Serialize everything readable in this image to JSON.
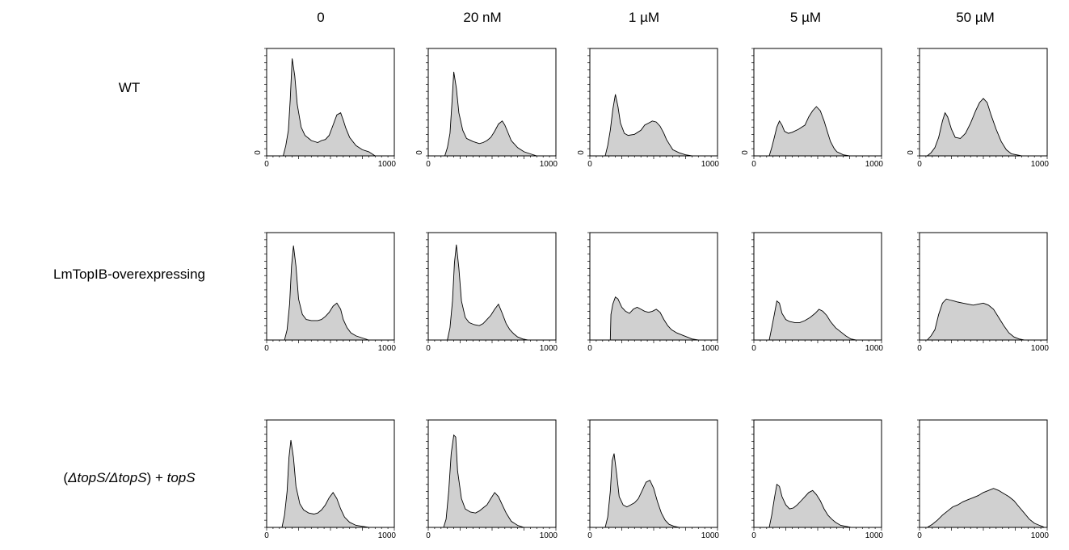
{
  "columns": [
    "0",
    "20 nM",
    "1 µM",
    "5 µM",
    "50 µM"
  ],
  "rows": [
    {
      "label_parts": [
        {
          "text": "WT",
          "italic": false
        }
      ]
    },
    {
      "label_parts": [
        {
          "text": "LmTopIB-overexpressing",
          "italic": false
        }
      ]
    },
    {
      "label_parts": [
        {
          "text": "(",
          "italic": false
        },
        {
          "text": "ΔtopS/ΔtopS",
          "italic": true
        },
        {
          "text": ") + ",
          "italic": false
        },
        {
          "text": "topS",
          "italic": true
        }
      ]
    }
  ],
  "colors": {
    "fill": "#d0d0d0",
    "stroke": "#000000"
  },
  "chart_data": [
    {
      "type": "area",
      "row": 0,
      "col": 0,
      "xlim": [
        0,
        1000
      ],
      "x_ticklabels": [
        "0",
        "1000"
      ],
      "y_ticklabels": [
        "0"
      ],
      "x": [
        0,
        130,
        150,
        170,
        185,
        200,
        220,
        240,
        270,
        300,
        350,
        400,
        430,
        460,
        490,
        520,
        550,
        580,
        600,
        620,
        650,
        700,
        750,
        800,
        850,
        900,
        1000
      ],
      "y": [
        0,
        0,
        0.1,
        0.25,
        0.55,
        0.95,
        0.78,
        0.5,
        0.28,
        0.2,
        0.15,
        0.13,
        0.15,
        0.16,
        0.2,
        0.3,
        0.4,
        0.42,
        0.35,
        0.27,
        0.18,
        0.1,
        0.06,
        0.04,
        0,
        0,
        0
      ]
    },
    {
      "type": "area",
      "row": 0,
      "col": 1,
      "xlim": [
        0,
        1000
      ],
      "x_ticklabels": [
        "0",
        "1000"
      ],
      "y_ticklabels": [
        "0"
      ],
      "x": [
        0,
        130,
        150,
        170,
        185,
        200,
        220,
        240,
        270,
        300,
        350,
        400,
        430,
        460,
        490,
        520,
        550,
        580,
        600,
        620,
        650,
        700,
        750,
        800,
        850,
        900,
        1000
      ],
      "y": [
        0,
        0,
        0.08,
        0.22,
        0.5,
        0.82,
        0.66,
        0.42,
        0.25,
        0.17,
        0.14,
        0.12,
        0.13,
        0.15,
        0.18,
        0.24,
        0.31,
        0.34,
        0.3,
        0.24,
        0.15,
        0.08,
        0.04,
        0.02,
        0,
        0,
        0
      ]
    },
    {
      "type": "area",
      "row": 0,
      "col": 2,
      "xlim": [
        0,
        1000
      ],
      "x_ticklabels": [
        "0",
        "1000"
      ],
      "y_ticklabels": [
        "0"
      ],
      "x": [
        0,
        120,
        140,
        160,
        180,
        200,
        220,
        240,
        270,
        300,
        350,
        400,
        430,
        460,
        490,
        520,
        550,
        580,
        600,
        630,
        650,
        700,
        750,
        800,
        850,
        900,
        1000
      ],
      "y": [
        0,
        0,
        0.1,
        0.25,
        0.45,
        0.6,
        0.48,
        0.32,
        0.22,
        0.2,
        0.21,
        0.25,
        0.3,
        0.32,
        0.34,
        0.33,
        0.29,
        0.22,
        0.16,
        0.1,
        0.06,
        0.03,
        0.01,
        0,
        0,
        0,
        0
      ]
    },
    {
      "type": "area",
      "row": 0,
      "col": 3,
      "xlim": [
        0,
        1000
      ],
      "x_ticklabels": [
        "0",
        "1000"
      ],
      "y_ticklabels": [
        "0"
      ],
      "x": [
        0,
        120,
        140,
        160,
        180,
        200,
        220,
        240,
        270,
        300,
        350,
        400,
        430,
        460,
        490,
        520,
        550,
        580,
        600,
        630,
        650,
        700,
        750,
        800,
        850,
        900,
        1000
      ],
      "y": [
        0,
        0,
        0.08,
        0.18,
        0.28,
        0.34,
        0.3,
        0.24,
        0.22,
        0.23,
        0.26,
        0.3,
        0.38,
        0.44,
        0.48,
        0.44,
        0.34,
        0.22,
        0.14,
        0.07,
        0.04,
        0.01,
        0,
        0,
        0,
        0,
        0
      ]
    },
    {
      "type": "area",
      "row": 0,
      "col": 4,
      "xlim": [
        0,
        1000
      ],
      "x_ticklabels": [
        "0",
        "1000"
      ],
      "y_ticklabels": [
        "0"
      ],
      "x": [
        0,
        60,
        90,
        120,
        150,
        180,
        200,
        220,
        250,
        280,
        320,
        360,
        400,
        440,
        470,
        500,
        530,
        560,
        600,
        640,
        680,
        720,
        760,
        800,
        850,
        900,
        1000
      ],
      "y": [
        0,
        0,
        0.03,
        0.08,
        0.18,
        0.34,
        0.42,
        0.38,
        0.26,
        0.18,
        0.17,
        0.22,
        0.32,
        0.44,
        0.52,
        0.56,
        0.52,
        0.4,
        0.26,
        0.14,
        0.06,
        0.02,
        0.01,
        0,
        0,
        0,
        0
      ]
    },
    {
      "type": "area",
      "row": 1,
      "col": 0,
      "xlim": [
        0,
        1000
      ],
      "x_ticklabels": [
        "0",
        "1000"
      ],
      "y_ticklabels": [],
      "x": [
        0,
        140,
        160,
        180,
        195,
        210,
        230,
        250,
        280,
        310,
        350,
        400,
        430,
        460,
        490,
        520,
        550,
        580,
        600,
        630,
        660,
        700,
        750,
        800,
        850,
        900,
        1000
      ],
      "y": [
        0,
        0,
        0.1,
        0.35,
        0.72,
        0.92,
        0.72,
        0.4,
        0.25,
        0.2,
        0.19,
        0.19,
        0.2,
        0.23,
        0.27,
        0.33,
        0.36,
        0.3,
        0.2,
        0.12,
        0.07,
        0.04,
        0.02,
        0,
        0,
        0,
        0
      ]
    },
    {
      "type": "area",
      "row": 1,
      "col": 1,
      "xlim": [
        0,
        1000
      ],
      "x_ticklabels": [
        "0",
        "1000"
      ],
      "y_ticklabels": [],
      "x": [
        0,
        150,
        170,
        190,
        205,
        220,
        240,
        260,
        290,
        320,
        360,
        400,
        430,
        460,
        490,
        520,
        550,
        580,
        610,
        640,
        670,
        700,
        740,
        780,
        820,
        900,
        1000
      ],
      "y": [
        0,
        0,
        0.12,
        0.38,
        0.75,
        0.93,
        0.7,
        0.38,
        0.22,
        0.17,
        0.15,
        0.14,
        0.16,
        0.2,
        0.24,
        0.3,
        0.35,
        0.26,
        0.16,
        0.1,
        0.06,
        0.03,
        0.01,
        0,
        0,
        0,
        0
      ]
    },
    {
      "type": "area",
      "row": 1,
      "col": 2,
      "xlim": [
        0,
        1000
      ],
      "x_ticklabels": [
        "0",
        "1000"
      ],
      "y_ticklabels": [],
      "x": [
        0,
        160,
        165,
        180,
        200,
        220,
        250,
        280,
        310,
        340,
        370,
        400,
        430,
        460,
        490,
        520,
        550,
        580,
        610,
        640,
        680,
        720,
        760,
        800,
        850,
        900,
        1000
      ],
      "y": [
        0,
        0,
        0.25,
        0.35,
        0.42,
        0.4,
        0.32,
        0.28,
        0.26,
        0.3,
        0.32,
        0.3,
        0.28,
        0.27,
        0.28,
        0.3,
        0.27,
        0.2,
        0.14,
        0.1,
        0.07,
        0.05,
        0.03,
        0.01,
        0,
        0,
        0
      ]
    },
    {
      "type": "area",
      "row": 1,
      "col": 3,
      "xlim": [
        0,
        1000
      ],
      "x_ticklabels": [
        "0",
        "1000"
      ],
      "y_ticklabels": [],
      "x": [
        0,
        120,
        140,
        160,
        180,
        200,
        220,
        250,
        280,
        320,
        360,
        400,
        440,
        480,
        510,
        540,
        570,
        600,
        640,
        680,
        720,
        760,
        800,
        850,
        900,
        950,
        1000
      ],
      "y": [
        0,
        0,
        0.12,
        0.25,
        0.38,
        0.36,
        0.26,
        0.2,
        0.18,
        0.17,
        0.17,
        0.19,
        0.22,
        0.26,
        0.3,
        0.28,
        0.24,
        0.18,
        0.12,
        0.08,
        0.04,
        0.01,
        0,
        0,
        0,
        0,
        0
      ]
    },
    {
      "type": "area",
      "row": 1,
      "col": 4,
      "xlim": [
        0,
        1000
      ],
      "x_ticklabels": [
        "0",
        "1000"
      ],
      "y_ticklabels": [],
      "x": [
        0,
        60,
        90,
        120,
        150,
        180,
        210,
        240,
        270,
        300,
        340,
        380,
        420,
        460,
        500,
        540,
        580,
        620,
        660,
        700,
        740,
        780,
        820,
        860,
        900,
        950,
        1000
      ],
      "y": [
        0,
        0,
        0.04,
        0.1,
        0.25,
        0.36,
        0.4,
        0.39,
        0.38,
        0.37,
        0.36,
        0.35,
        0.34,
        0.35,
        0.36,
        0.34,
        0.3,
        0.22,
        0.14,
        0.07,
        0.03,
        0.01,
        0,
        0,
        0,
        0,
        0
      ]
    },
    {
      "type": "area",
      "row": 2,
      "col": 0,
      "xlim": [
        0,
        1000
      ],
      "x_ticklabels": [
        "0",
        "1000"
      ],
      "y_ticklabels": [],
      "x": [
        0,
        120,
        140,
        160,
        175,
        190,
        210,
        230,
        260,
        290,
        330,
        370,
        400,
        430,
        460,
        490,
        520,
        550,
        580,
        610,
        650,
        700,
        750,
        800,
        850,
        900,
        1000
      ],
      "y": [
        0,
        0,
        0.12,
        0.35,
        0.68,
        0.85,
        0.68,
        0.4,
        0.23,
        0.17,
        0.14,
        0.13,
        0.14,
        0.17,
        0.22,
        0.29,
        0.34,
        0.28,
        0.18,
        0.1,
        0.05,
        0.02,
        0.01,
        0,
        0,
        0,
        0
      ]
    },
    {
      "type": "area",
      "row": 2,
      "col": 1,
      "xlim": [
        0,
        1000
      ],
      "x_ticklabels": [
        "0",
        "1000"
      ],
      "y_ticklabels": [],
      "x": [
        0,
        120,
        140,
        160,
        180,
        200,
        215,
        230,
        260,
        290,
        330,
        370,
        400,
        430,
        460,
        490,
        520,
        550,
        580,
        610,
        650,
        700,
        750,
        800,
        850,
        900,
        1000
      ],
      "y": [
        0,
        0,
        0.08,
        0.35,
        0.72,
        0.9,
        0.88,
        0.55,
        0.28,
        0.18,
        0.15,
        0.14,
        0.16,
        0.19,
        0.22,
        0.28,
        0.34,
        0.3,
        0.22,
        0.14,
        0.06,
        0.02,
        0,
        0,
        0,
        0,
        0
      ]
    },
    {
      "type": "area",
      "row": 2,
      "col": 2,
      "xlim": [
        0,
        1000
      ],
      "x_ticklabels": [
        "0",
        "1000"
      ],
      "y_ticklabels": [],
      "x": [
        0,
        120,
        140,
        160,
        175,
        190,
        210,
        230,
        260,
        290,
        320,
        350,
        380,
        410,
        440,
        470,
        500,
        530,
        560,
        590,
        620,
        660,
        700,
        750,
        800,
        900,
        1000
      ],
      "y": [
        0,
        0,
        0.1,
        0.35,
        0.65,
        0.72,
        0.52,
        0.3,
        0.22,
        0.2,
        0.22,
        0.24,
        0.28,
        0.36,
        0.44,
        0.46,
        0.38,
        0.25,
        0.14,
        0.07,
        0.03,
        0.01,
        0,
        0,
        0,
        0,
        0
      ]
    },
    {
      "type": "area",
      "row": 2,
      "col": 3,
      "xlim": [
        0,
        1000
      ],
      "x_ticklabels": [
        "0",
        "1000"
      ],
      "y_ticklabels": [],
      "x": [
        0,
        120,
        140,
        160,
        180,
        200,
        220,
        250,
        280,
        310,
        340,
        370,
        400,
        430,
        460,
        490,
        520,
        550,
        580,
        610,
        640,
        680,
        720,
        760,
        800,
        900,
        1000
      ],
      "y": [
        0,
        0,
        0.12,
        0.28,
        0.42,
        0.4,
        0.3,
        0.22,
        0.18,
        0.19,
        0.22,
        0.26,
        0.3,
        0.34,
        0.36,
        0.32,
        0.26,
        0.18,
        0.12,
        0.08,
        0.05,
        0.02,
        0.01,
        0,
        0,
        0,
        0
      ]
    },
    {
      "type": "area",
      "row": 2,
      "col": 4,
      "xlim": [
        0,
        1000
      ],
      "x_ticklabels": [
        "0",
        "1000"
      ],
      "y_ticklabels": [],
      "x": [
        0,
        60,
        100,
        140,
        180,
        220,
        260,
        300,
        340,
        380,
        420,
        460,
        500,
        540,
        580,
        620,
        660,
        700,
        740,
        780,
        820,
        860,
        900,
        940,
        960,
        980,
        1000
      ],
      "y": [
        0,
        0,
        0.03,
        0.07,
        0.12,
        0.16,
        0.2,
        0.22,
        0.25,
        0.27,
        0.29,
        0.31,
        0.34,
        0.36,
        0.38,
        0.36,
        0.33,
        0.3,
        0.26,
        0.2,
        0.14,
        0.08,
        0.04,
        0.02,
        0.01,
        0,
        0
      ]
    }
  ]
}
